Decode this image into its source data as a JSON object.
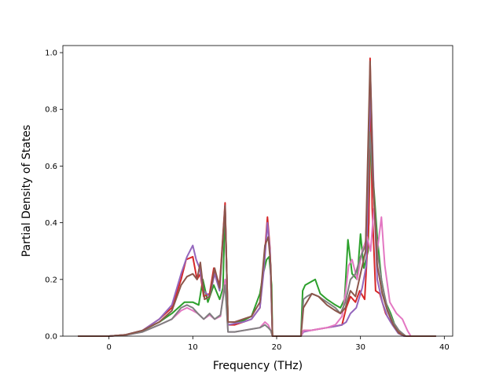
{
  "chart_data": {
    "type": "line",
    "title": "",
    "xlabel": "Frequency (THz)",
    "ylabel": "Partial Density of States",
    "xlim": [
      -5.5,
      41
    ],
    "ylim": [
      0,
      1.025
    ],
    "xticks": [
      0,
      10,
      20,
      30,
      40
    ],
    "xtick_labels": [
      "0",
      "10",
      "20",
      "30",
      "40"
    ],
    "yticks": [
      0.0,
      0.2,
      0.4,
      0.6,
      0.8,
      1.0
    ],
    "ytick_labels": [
      "0.0",
      "0.2",
      "0.4",
      "0.6",
      "0.8",
      "1.0"
    ],
    "grid": false,
    "legend": "none",
    "series": [
      {
        "color": "#2ca02c",
        "points": [
          [
            -3.7,
            0
          ],
          [
            0,
            0
          ],
          [
            2,
            0.005
          ],
          [
            4,
            0.02
          ],
          [
            6,
            0.05
          ],
          [
            7.5,
            0.08
          ],
          [
            9,
            0.12
          ],
          [
            10,
            0.12
          ],
          [
            10.7,
            0.11
          ],
          [
            11.2,
            0.2
          ],
          [
            11.8,
            0.12
          ],
          [
            12.5,
            0.18
          ],
          [
            13.2,
            0.13
          ],
          [
            13.6,
            0.17
          ],
          [
            13.85,
            0.45
          ],
          [
            14.2,
            0.05
          ],
          [
            15,
            0.05
          ],
          [
            16,
            0.055
          ],
          [
            17,
            0.07
          ],
          [
            18,
            0.15
          ],
          [
            18.4,
            0.22
          ],
          [
            18.8,
            0.27
          ],
          [
            19.1,
            0.28
          ],
          [
            19.4,
            0.18
          ],
          [
            19.5,
            0
          ],
          [
            22.9,
            0
          ],
          [
            23.1,
            0.16
          ],
          [
            23.4,
            0.18
          ],
          [
            24,
            0.19
          ],
          [
            24.6,
            0.2
          ],
          [
            25.2,
            0.15
          ],
          [
            26,
            0.13
          ],
          [
            27,
            0.11
          ],
          [
            27.6,
            0.1
          ],
          [
            28.1,
            0.13
          ],
          [
            28.5,
            0.34
          ],
          [
            29,
            0.22
          ],
          [
            29.6,
            0.2
          ],
          [
            30,
            0.36
          ],
          [
            30.4,
            0.24
          ],
          [
            30.9,
            0.3
          ],
          [
            31.2,
            0.71
          ],
          [
            31.6,
            0.52
          ],
          [
            32,
            0.35
          ],
          [
            32.5,
            0.2
          ],
          [
            33,
            0.12
          ],
          [
            33.6,
            0.08
          ],
          [
            34.2,
            0.03
          ],
          [
            34.8,
            0.01
          ],
          [
            35.4,
            0
          ],
          [
            39,
            0
          ]
        ]
      },
      {
        "color": "#d62728",
        "points": [
          [
            -3.7,
            0
          ],
          [
            0,
            0
          ],
          [
            2,
            0.005
          ],
          [
            4,
            0.02
          ],
          [
            6,
            0.06
          ],
          [
            7.5,
            0.1
          ],
          [
            8.6,
            0.2
          ],
          [
            9.2,
            0.27
          ],
          [
            10,
            0.28
          ],
          [
            10.5,
            0.2
          ],
          [
            10.9,
            0.22
          ],
          [
            11.3,
            0.14
          ],
          [
            12,
            0.15
          ],
          [
            12.5,
            0.24
          ],
          [
            13.2,
            0.18
          ],
          [
            13.85,
            0.47
          ],
          [
            14.2,
            0.04
          ],
          [
            15,
            0.04
          ],
          [
            16,
            0.05
          ],
          [
            17,
            0.06
          ],
          [
            18,
            0.1
          ],
          [
            18.6,
            0.3
          ],
          [
            18.9,
            0.42
          ],
          [
            19.2,
            0.31
          ],
          [
            19.5,
            0
          ],
          [
            22.9,
            0
          ],
          [
            23.2,
            0.02
          ],
          [
            24,
            0.02
          ],
          [
            25,
            0.025
          ],
          [
            26,
            0.03
          ],
          [
            27,
            0.035
          ],
          [
            27.8,
            0.04
          ],
          [
            28.3,
            0.1
          ],
          [
            28.8,
            0.14
          ],
          [
            29.4,
            0.12
          ],
          [
            29.9,
            0.16
          ],
          [
            30.5,
            0.13
          ],
          [
            31,
            0.4
          ],
          [
            31.15,
            0.98
          ],
          [
            31.4,
            0.45
          ],
          [
            31.8,
            0.16
          ],
          [
            32.3,
            0.15
          ],
          [
            33,
            0.08
          ],
          [
            33.6,
            0.05
          ],
          [
            34.4,
            0.02
          ],
          [
            35.2,
            0
          ],
          [
            39,
            0
          ]
        ]
      },
      {
        "color": "#9467bd",
        "points": [
          [
            -3.7,
            0
          ],
          [
            0,
            0
          ],
          [
            2,
            0.005
          ],
          [
            4,
            0.02
          ],
          [
            6,
            0.06
          ],
          [
            7.5,
            0.11
          ],
          [
            8.6,
            0.22
          ],
          [
            9.3,
            0.28
          ],
          [
            10,
            0.32
          ],
          [
            10.4,
            0.27
          ],
          [
            10.8,
            0.24
          ],
          [
            11.3,
            0.16
          ],
          [
            12,
            0.14
          ],
          [
            12.6,
            0.22
          ],
          [
            13.2,
            0.16
          ],
          [
            13.85,
            0.46
          ],
          [
            14.2,
            0.04
          ],
          [
            15,
            0.045
          ],
          [
            16,
            0.05
          ],
          [
            17,
            0.06
          ],
          [
            18,
            0.1
          ],
          [
            18.5,
            0.24
          ],
          [
            18.9,
            0.4
          ],
          [
            19.2,
            0.3
          ],
          [
            19.5,
            0
          ],
          [
            22.9,
            0
          ],
          [
            23.2,
            0.015
          ],
          [
            24,
            0.02
          ],
          [
            25,
            0.025
          ],
          [
            26,
            0.03
          ],
          [
            27,
            0.035
          ],
          [
            27.8,
            0.04
          ],
          [
            28.3,
            0.05
          ],
          [
            28.8,
            0.08
          ],
          [
            29.5,
            0.1
          ],
          [
            30.2,
            0.17
          ],
          [
            30.7,
            0.25
          ],
          [
            31.2,
            0.9
          ],
          [
            31.6,
            0.5
          ],
          [
            32,
            0.2
          ],
          [
            32.6,
            0.12
          ],
          [
            33.2,
            0.07
          ],
          [
            33.8,
            0.04
          ],
          [
            34.5,
            0.01
          ],
          [
            35.2,
            0
          ],
          [
            39,
            0
          ]
        ]
      },
      {
        "color": "#e377c2",
        "points": [
          [
            -3.7,
            0
          ],
          [
            0,
            0
          ],
          [
            2,
            0.004
          ],
          [
            4,
            0.015
          ],
          [
            6,
            0.04
          ],
          [
            7.5,
            0.06
          ],
          [
            8.6,
            0.09
          ],
          [
            9.3,
            0.1
          ],
          [
            10,
            0.09
          ],
          [
            10.6,
            0.08
          ],
          [
            11.3,
            0.06
          ],
          [
            12,
            0.075
          ],
          [
            12.6,
            0.06
          ],
          [
            13.3,
            0.07
          ],
          [
            13.85,
            0.2
          ],
          [
            14.2,
            0.015
          ],
          [
            15,
            0.015
          ],
          [
            16,
            0.02
          ],
          [
            17,
            0.025
          ],
          [
            18,
            0.03
          ],
          [
            18.6,
            0.05
          ],
          [
            19,
            0.04
          ],
          [
            19.3,
            0.02
          ],
          [
            19.5,
            0
          ],
          [
            22.9,
            0
          ],
          [
            23.2,
            0.02
          ],
          [
            24,
            0.02
          ],
          [
            25,
            0.025
          ],
          [
            26,
            0.03
          ],
          [
            27,
            0.04
          ],
          [
            27.8,
            0.07
          ],
          [
            28.2,
            0.15
          ],
          [
            28.6,
            0.25
          ],
          [
            29,
            0.27
          ],
          [
            29.6,
            0.2
          ],
          [
            30.2,
            0.3
          ],
          [
            30.8,
            0.35
          ],
          [
            31.2,
            0.3
          ],
          [
            31.6,
            0.45
          ],
          [
            32,
            0.3
          ],
          [
            32.5,
            0.42
          ],
          [
            32.9,
            0.25
          ],
          [
            33.5,
            0.12
          ],
          [
            34.3,
            0.08
          ],
          [
            35,
            0.06
          ],
          [
            35.6,
            0.02
          ],
          [
            36,
            0
          ],
          [
            39,
            0
          ]
        ]
      },
      {
        "color": "#7f7f7f",
        "points": [
          [
            -3.7,
            0
          ],
          [
            0,
            0
          ],
          [
            2,
            0.004
          ],
          [
            4,
            0.015
          ],
          [
            6,
            0.04
          ],
          [
            7.5,
            0.06
          ],
          [
            8.6,
            0.1
          ],
          [
            9.3,
            0.11
          ],
          [
            10,
            0.1
          ],
          [
            10.6,
            0.08
          ],
          [
            11.3,
            0.06
          ],
          [
            12,
            0.08
          ],
          [
            12.6,
            0.06
          ],
          [
            13.3,
            0.075
          ],
          [
            13.85,
            0.18
          ],
          [
            14.2,
            0.015
          ],
          [
            15,
            0.015
          ],
          [
            16,
            0.02
          ],
          [
            17,
            0.025
          ],
          [
            18,
            0.03
          ],
          [
            18.6,
            0.04
          ],
          [
            19,
            0.03
          ],
          [
            19.3,
            0.02
          ],
          [
            19.5,
            0
          ],
          [
            22.9,
            0
          ],
          [
            23.2,
            0.13
          ],
          [
            23.6,
            0.14
          ],
          [
            24.2,
            0.15
          ],
          [
            25,
            0.14
          ],
          [
            26,
            0.12
          ],
          [
            27,
            0.1
          ],
          [
            27.6,
            0.08
          ],
          [
            28.2,
            0.12
          ],
          [
            28.8,
            0.2
          ],
          [
            29.4,
            0.22
          ],
          [
            30,
            0.28
          ],
          [
            30.6,
            0.32
          ],
          [
            31.1,
            0.72
          ],
          [
            31.6,
            0.5
          ],
          [
            32,
            0.3
          ],
          [
            32.6,
            0.18
          ],
          [
            33.2,
            0.1
          ],
          [
            33.9,
            0.05
          ],
          [
            34.6,
            0.02
          ],
          [
            35.4,
            0
          ],
          [
            39,
            0
          ]
        ]
      },
      {
        "color": "#8c564b",
        "points": [
          [
            -3.7,
            0
          ],
          [
            0,
            0
          ],
          [
            2,
            0.005
          ],
          [
            4,
            0.02
          ],
          [
            6,
            0.05
          ],
          [
            7.5,
            0.09
          ],
          [
            8.6,
            0.18
          ],
          [
            9.3,
            0.21
          ],
          [
            10,
            0.22
          ],
          [
            10.5,
            0.2
          ],
          [
            10.9,
            0.26
          ],
          [
            11.4,
            0.13
          ],
          [
            12,
            0.14
          ],
          [
            12.6,
            0.24
          ],
          [
            13.2,
            0.17
          ],
          [
            13.85,
            0.46
          ],
          [
            14.2,
            0.05
          ],
          [
            15,
            0.05
          ],
          [
            16,
            0.06
          ],
          [
            17,
            0.07
          ],
          [
            18,
            0.12
          ],
          [
            18.6,
            0.32
          ],
          [
            19,
            0.35
          ],
          [
            19.3,
            0.25
          ],
          [
            19.5,
            0
          ],
          [
            22.9,
            0
          ],
          [
            23.2,
            0.1
          ],
          [
            23.6,
            0.12
          ],
          [
            24.2,
            0.15
          ],
          [
            25,
            0.14
          ],
          [
            26,
            0.11
          ],
          [
            27,
            0.09
          ],
          [
            27.6,
            0.08
          ],
          [
            28.2,
            0.1
          ],
          [
            28.8,
            0.16
          ],
          [
            29.4,
            0.14
          ],
          [
            30,
            0.22
          ],
          [
            30.6,
            0.3
          ],
          [
            31.15,
            0.97
          ],
          [
            31.5,
            0.55
          ],
          [
            32,
            0.25
          ],
          [
            32.6,
            0.15
          ],
          [
            33.2,
            0.09
          ],
          [
            33.9,
            0.04
          ],
          [
            34.6,
            0.01
          ],
          [
            35.4,
            0
          ],
          [
            39,
            0
          ]
        ]
      }
    ]
  }
}
